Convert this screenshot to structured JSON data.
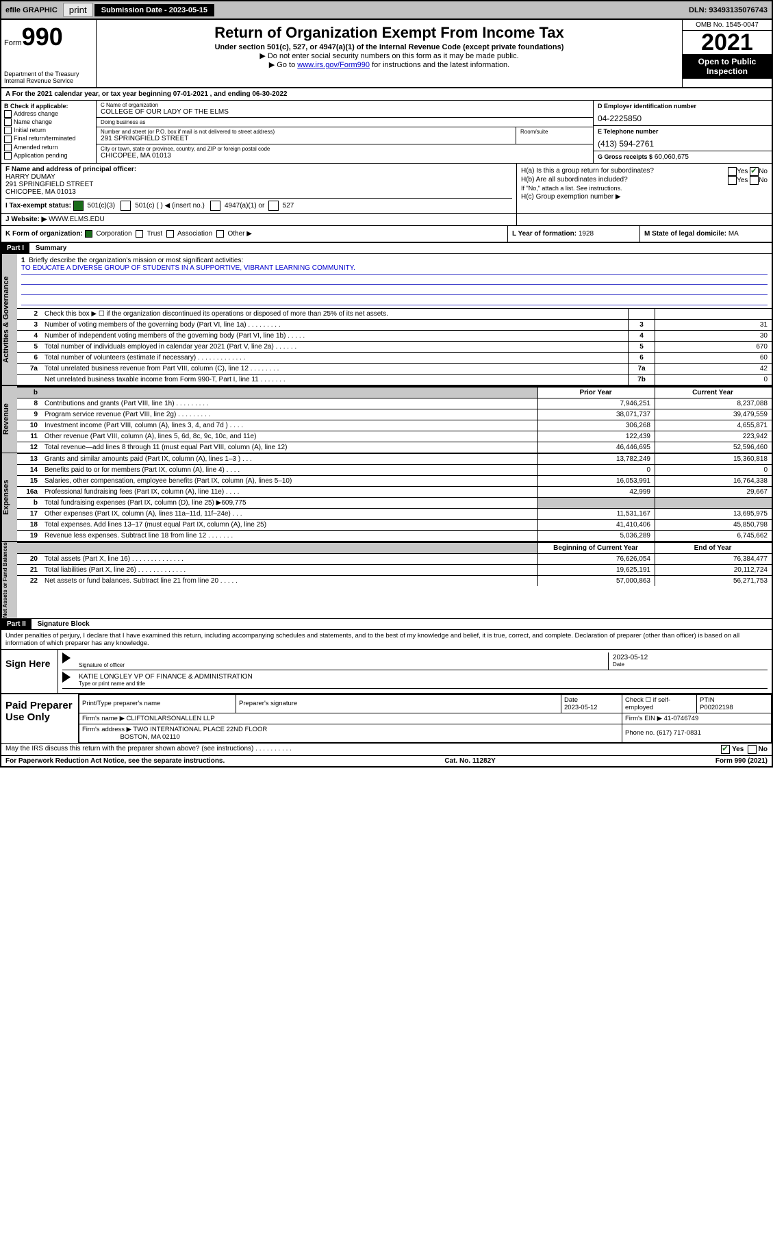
{
  "topbar": {
    "efile": "efile GRAPHIC",
    "print": "print",
    "subdate_label": "Submission Date - 2023-05-15",
    "dln": "DLN: 93493135076743"
  },
  "header": {
    "form_small": "Form",
    "form_big": "990",
    "dept": "Department of the Treasury",
    "irs": "Internal Revenue Service",
    "title": "Return of Organization Exempt From Income Tax",
    "sub": "Under section 501(c), 527, or 4947(a)(1) of the Internal Revenue Code (except private foundations)",
    "note1": "▶ Do not enter social security numbers on this form as it may be made public.",
    "note2_pre": "▶ Go to ",
    "note2_link": "www.irs.gov/Form990",
    "note2_post": " for instructions and the latest information.",
    "omb": "OMB No. 1545-0047",
    "year": "2021",
    "open": "Open to Public Inspection"
  },
  "period": {
    "text_a": "A For the 2021 calendar year, or tax year beginning ",
    "begin": "07-01-2021",
    "text_b": " , and ending ",
    "end": "06-30-2022"
  },
  "boxB": {
    "hdr": "B Check if applicable:",
    "items": [
      "Address change",
      "Name change",
      "Initial return",
      "Final return/terminated",
      "Amended return",
      "Application pending"
    ]
  },
  "boxC": {
    "name_label": "C Name of organization",
    "name": "COLLEGE OF OUR LADY OF THE ELMS",
    "dba_label": "Doing business as",
    "dba": "",
    "addr_label": "Number and street (or P.O. box if mail is not delivered to street address)",
    "room_label": "Room/suite",
    "addr": "291 SPRINGFIELD STREET",
    "city_label": "City or town, state or province, country, and ZIP or foreign postal code",
    "city": "CHICOPEE, MA  01013"
  },
  "boxD": {
    "label": "D Employer identification number",
    "val": "04-2225850"
  },
  "boxE": {
    "label": "E Telephone number",
    "val": "(413) 594-2761"
  },
  "boxG": {
    "label": "G Gross receipts $",
    "val": "60,060,675"
  },
  "boxF": {
    "label": "F Name and address of principal officer:",
    "name": "HARRY DUMAY",
    "addr1": "291 SPRINGFIELD STREET",
    "addr2": "CHICOPEE, MA  01013"
  },
  "boxH": {
    "ha": "H(a)  Is this a group return for subordinates?",
    "hb": "H(b)  Are all subordinates included?",
    "hb_note": "If \"No,\" attach a list. See instructions.",
    "hc": "H(c)  Group exemption number ▶",
    "yes": "Yes",
    "no": "No"
  },
  "taxstatus": {
    "label": "I   Tax-exempt status:",
    "o1": "501(c)(3)",
    "o2": "501(c) (  ) ◀ (insert no.)",
    "o3": "4947(a)(1) or",
    "o4": "527"
  },
  "website": {
    "label": "J   Website: ▶",
    "val": "WWW.ELMS.EDU"
  },
  "boxK": {
    "label": "K Form of organization:",
    "o1": "Corporation",
    "o2": "Trust",
    "o3": "Association",
    "o4": "Other ▶"
  },
  "boxL": {
    "label": "L Year of formation:",
    "val": "1928"
  },
  "boxM": {
    "label": "M State of legal domicile:",
    "val": "MA"
  },
  "part1": {
    "hdr": "Part I",
    "title": "Summary"
  },
  "mission": {
    "num": "1",
    "label": "Briefly describe the organization's mission or most significant activities:",
    "text": "TO EDUCATE A DIVERSE GROUP OF STUDENTS IN A SUPPORTIVE, VIBRANT LEARNING COMMUNITY."
  },
  "govLabel": "Activities & Governance",
  "revLabel": "Revenue",
  "expLabel": "Expenses",
  "nafLabel": "Net Assets or Fund Balances",
  "lines_gov": [
    {
      "n": "2",
      "d": "Check this box ▶ ☐  if the organization discontinued its operations or disposed of more than 25% of its net assets.",
      "box": "",
      "v": ""
    },
    {
      "n": "3",
      "d": "Number of voting members of the governing body (Part VI, line 1a)   .   .   .   .   .   .   .   .   .",
      "box": "3",
      "v": "31"
    },
    {
      "n": "4",
      "d": "Number of independent voting members of the governing body (Part VI, line 1b)   .   .   .   .   .",
      "box": "4",
      "v": "30"
    },
    {
      "n": "5",
      "d": "Total number of individuals employed in calendar year 2021 (Part V, line 2a)   .   .   .   .   .   .",
      "box": "5",
      "v": "670"
    },
    {
      "n": "6",
      "d": "Total number of volunteers (estimate if necessary)   .   .   .   .   .   .   .   .   .   .   .   .   .",
      "box": "6",
      "v": "60"
    },
    {
      "n": "7a",
      "d": "Total unrelated business revenue from Part VIII, column (C), line 12   .   .   .   .   .   .   .   .",
      "box": "7a",
      "v": "42"
    },
    {
      "n": "",
      "d": "Net unrelated business taxable income from Form 990-T, Part I, line 11   .   .   .   .   .   .   .",
      "box": "7b",
      "v": "0"
    }
  ],
  "col_hdrs": {
    "b": "b",
    "prior": "Prior Year",
    "curr": "Current Year"
  },
  "lines_rev": [
    {
      "n": "8",
      "d": "Contributions and grants (Part VIII, line 1h)   .   .   .   .   .   .   .   .   .",
      "p": "7,946,251",
      "c": "8,237,088"
    },
    {
      "n": "9",
      "d": "Program service revenue (Part VIII, line 2g)   .   .   .   .   .   .   .   .   .",
      "p": "38,071,737",
      "c": "39,479,559"
    },
    {
      "n": "10",
      "d": "Investment income (Part VIII, column (A), lines 3, 4, and 7d )   .   .   .   .",
      "p": "306,268",
      "c": "4,655,871"
    },
    {
      "n": "11",
      "d": "Other revenue (Part VIII, column (A), lines 5, 6d, 8c, 9c, 10c, and 11e)",
      "p": "122,439",
      "c": "223,942"
    },
    {
      "n": "12",
      "d": "Total revenue—add lines 8 through 11 (must equal Part VIII, column (A), line 12)",
      "p": "46,446,695",
      "c": "52,596,460"
    }
  ],
  "lines_exp": [
    {
      "n": "13",
      "d": "Grants and similar amounts paid (Part IX, column (A), lines 1–3 )   .   .   .",
      "p": "13,782,249",
      "c": "15,360,818"
    },
    {
      "n": "14",
      "d": "Benefits paid to or for members (Part IX, column (A), line 4)   .   .   .   .",
      "p": "0",
      "c": "0"
    },
    {
      "n": "15",
      "d": "Salaries, other compensation, employee benefits (Part IX, column (A), lines 5–10)",
      "p": "16,053,991",
      "c": "16,764,338"
    },
    {
      "n": "16a",
      "d": "Professional fundraising fees (Part IX, column (A), line 11e)   .   .   .   .",
      "p": "42,999",
      "c": "29,667"
    },
    {
      "n": "b",
      "d": "Total fundraising expenses (Part IX, column (D), line 25) ▶609,775",
      "p": "",
      "c": "",
      "grey": true
    },
    {
      "n": "17",
      "d": "Other expenses (Part IX, column (A), lines 11a–11d, 11f–24e)   .   .   .",
      "p": "11,531,167",
      "c": "13,695,975"
    },
    {
      "n": "18",
      "d": "Total expenses. Add lines 13–17 (must equal Part IX, column (A), line 25)",
      "p": "41,410,406",
      "c": "45,850,798"
    },
    {
      "n": "19",
      "d": "Revenue less expenses. Subtract line 18 from line 12   .   .   .   .   .   .   .",
      "p": "5,036,289",
      "c": "6,745,662"
    }
  ],
  "naf_hdrs": {
    "beg": "Beginning of Current Year",
    "end": "End of Year"
  },
  "lines_naf": [
    {
      "n": "20",
      "d": "Total assets (Part X, line 16)   .   .   .   .   .   .   .   .   .   .   .   .   .   .",
      "p": "76,626,054",
      "c": "76,384,477"
    },
    {
      "n": "21",
      "d": "Total liabilities (Part X, line 26)   .   .   .   .   .   .   .   .   .   .   .   .   .",
      "p": "19,625,191",
      "c": "20,112,724"
    },
    {
      "n": "22",
      "d": "Net assets or fund balances. Subtract line 21 from line 20   .   .   .   .   .",
      "p": "57,000,863",
      "c": "56,271,753"
    }
  ],
  "part2": {
    "hdr": "Part II",
    "title": "Signature Block"
  },
  "penalty": "Under penalties of perjury, I declare that I have examined this return, including accompanying schedules and statements, and to the best of my knowledge and belief, it is true, correct, and complete. Declaration of preparer (other than officer) is based on all information of which preparer has any knowledge.",
  "sign": {
    "here": "Sign Here",
    "sig_label": "Signature of officer",
    "date_label": "Date",
    "date": "2023-05-12",
    "name": "KATIE LONGLEY VP OF FINANCE & ADMINISTRATION",
    "name_label": "Type or print name and title"
  },
  "preparer": {
    "left": "Paid Preparer Use Only",
    "h1": "Print/Type preparer's name",
    "h2": "Preparer's signature",
    "h3": "Date",
    "date": "2023-05-12",
    "h4": "Check ☐ if self-employed",
    "h5": "PTIN",
    "ptin": "P00202198",
    "firm_name_l": "Firm's name    ▶",
    "firm_name": "CLIFTONLARSONALLEN LLP",
    "firm_ein_l": "Firm's EIN ▶",
    "firm_ein": "41-0746749",
    "firm_addr_l": "Firm's address ▶",
    "firm_addr1": "TWO INTERNATIONAL PLACE 22ND FLOOR",
    "firm_addr2": "BOSTON, MA  02110",
    "phone_l": "Phone no.",
    "phone": "(617) 717-0831"
  },
  "discuss": {
    "text": "May the IRS discuss this return with the preparer shown above? (see instructions)   .   .   .   .   .   .   .   .   .   .",
    "yes": "Yes",
    "no": "No"
  },
  "footer": {
    "left": "For Paperwork Reduction Act Notice, see the separate instructions.",
    "mid": "Cat. No. 11282Y",
    "right": "Form 990 (2021)"
  }
}
